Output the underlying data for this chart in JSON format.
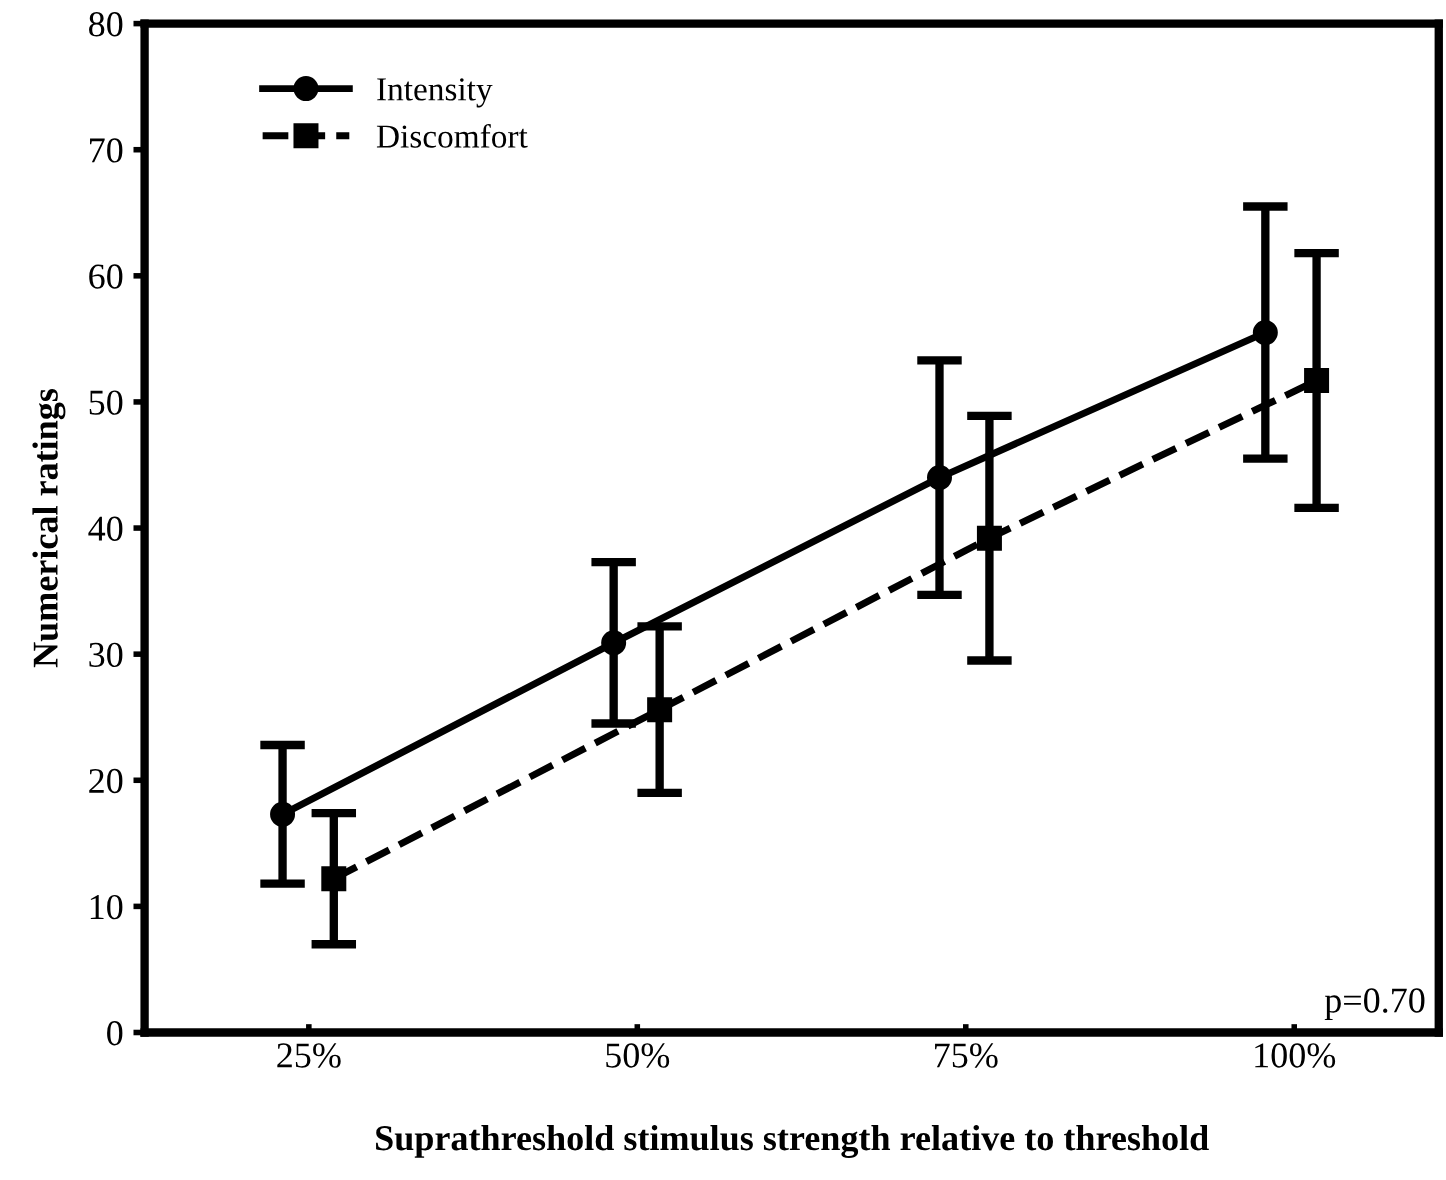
{
  "chart_data": {
    "type": "line",
    "xlabel": "Suprathreshold stimulus strength relative to threshold",
    "ylabel": "Numerical ratings",
    "xlim": [
      12.5,
      111
    ],
    "xticks": [
      {
        "value": 25,
        "label": "25%"
      },
      {
        "value": 50,
        "label": "50%"
      },
      {
        "value": 75,
        "label": "75%"
      },
      {
        "value": 100,
        "label": "100%"
      }
    ],
    "ylim": [
      0,
      80
    ],
    "yticks": [
      0,
      10,
      20,
      30,
      40,
      50,
      60,
      70,
      80
    ],
    "series": [
      {
        "name": "Intensity",
        "color": "#000000",
        "marker": "circle",
        "line_style": "solid",
        "x": [
          23.0,
          48.2,
          73.0,
          97.8
        ],
        "values": [
          17.3,
          30.9,
          44.0,
          55.5
        ],
        "errors": [
          5.5,
          6.4,
          9.3,
          10.0
        ]
      },
      {
        "name": "Discomfort",
        "color": "#000000",
        "marker": "square",
        "line_style": "dashed",
        "x": [
          26.9,
          51.7,
          76.8,
          101.7
        ],
        "values": [
          12.2,
          25.6,
          39.2,
          51.7
        ],
        "errors": [
          5.2,
          6.6,
          9.7,
          10.1
        ]
      }
    ],
    "annotations": [
      "p=0.70"
    ],
    "legend": "top left",
    "grid": false
  }
}
